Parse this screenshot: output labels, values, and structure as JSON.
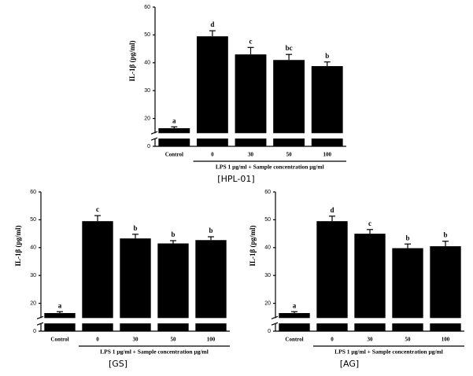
{
  "chart_data": [
    {
      "type": "bar",
      "caption": "[HPL-01]",
      "ylabel": "IL-1β (pg/ml)",
      "xlabel": "LPS 1 μg/ml + Sample concentration μg/ml",
      "categories": [
        "Control",
        "0",
        "30",
        "50",
        "100"
      ],
      "values": [
        16.5,
        49.5,
        43,
        41,
        38.8
      ],
      "errors": [
        0.5,
        2,
        2.5,
        2,
        1.5
      ],
      "letters": [
        "a",
        "d",
        "c",
        "bc",
        "b"
      ],
      "color": "#000000",
      "ylim": [
        0,
        60
      ],
      "yticks": [
        0,
        20,
        30,
        40,
        50,
        60
      ],
      "axis_break": [
        3,
        15
      ]
    },
    {
      "type": "bar",
      "caption": "[GS]",
      "ylabel": "IL-1β (pg/ml)",
      "xlabel": "LPS 1 μg/ml + Sample concentration μg/ml",
      "categories": [
        "Control",
        "0",
        "30",
        "50",
        "100"
      ],
      "values": [
        16.5,
        49.5,
        43.3,
        41.5,
        42.7
      ],
      "errors": [
        0.5,
        2,
        1.5,
        1,
        1.2
      ],
      "letters": [
        "a",
        "c",
        "b",
        "b",
        "b"
      ],
      "color": "#000000",
      "ylim": [
        0,
        60
      ],
      "yticks": [
        0,
        20,
        30,
        40,
        50,
        60
      ],
      "axis_break": [
        3,
        15
      ]
    },
    {
      "type": "bar",
      "caption": "[AG]",
      "ylabel": "IL-1β (pg/ml)",
      "xlabel": "LPS 1 μg/ml + Sample concentration μg/ml",
      "categories": [
        "Control",
        "0",
        "30",
        "50",
        "100"
      ],
      "values": [
        16.5,
        49.5,
        45,
        39.8,
        40.5
      ],
      "errors": [
        0.5,
        1.8,
        1.5,
        1.5,
        1.8
      ],
      "letters": [
        "a",
        "d",
        "c",
        "b",
        "b"
      ],
      "color": "#000000",
      "ylim": [
        0,
        60
      ],
      "yticks": [
        0,
        20,
        30,
        40,
        50,
        60
      ],
      "axis_break": [
        3,
        15
      ]
    }
  ]
}
